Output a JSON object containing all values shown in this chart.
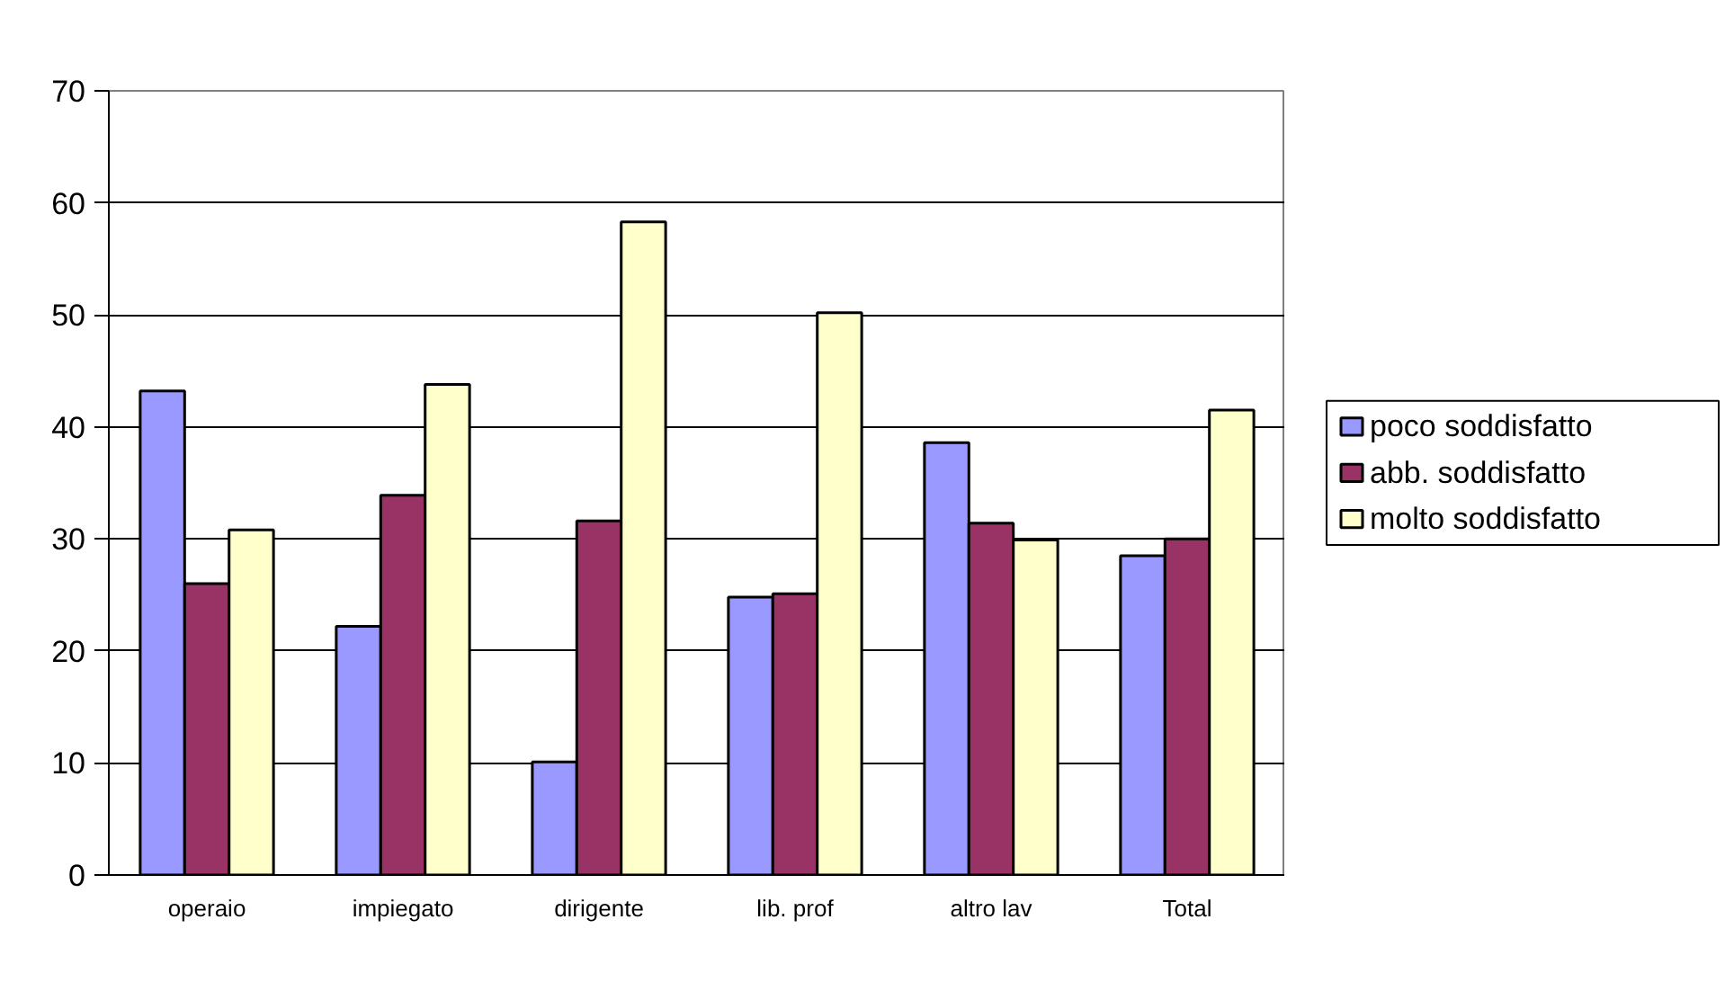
{
  "chart_data": {
    "type": "bar",
    "categories": [
      "operaio",
      "impiegato",
      "dirigente",
      "lib. prof",
      "altro lav",
      "Total"
    ],
    "series": [
      {
        "name": "poco soddisfatto",
        "color": "#9999ff",
        "values": [
          43.2,
          22.2,
          10.1,
          24.8,
          38.6,
          28.5
        ]
      },
      {
        "name": "abb. soddisfatto",
        "color": "#993366",
        "values": [
          26.0,
          33.9,
          31.6,
          25.1,
          31.4,
          30.0
        ]
      },
      {
        "name": "molto soddisfatto",
        "color": "#ffffcc",
        "values": [
          30.8,
          43.8,
          58.3,
          50.2,
          29.9,
          41.5
        ]
      }
    ],
    "ylim": [
      0,
      70
    ],
    "yticks": [
      0,
      10,
      20,
      30,
      40,
      50,
      60,
      70
    ],
    "grid": "y",
    "legend": "right"
  }
}
